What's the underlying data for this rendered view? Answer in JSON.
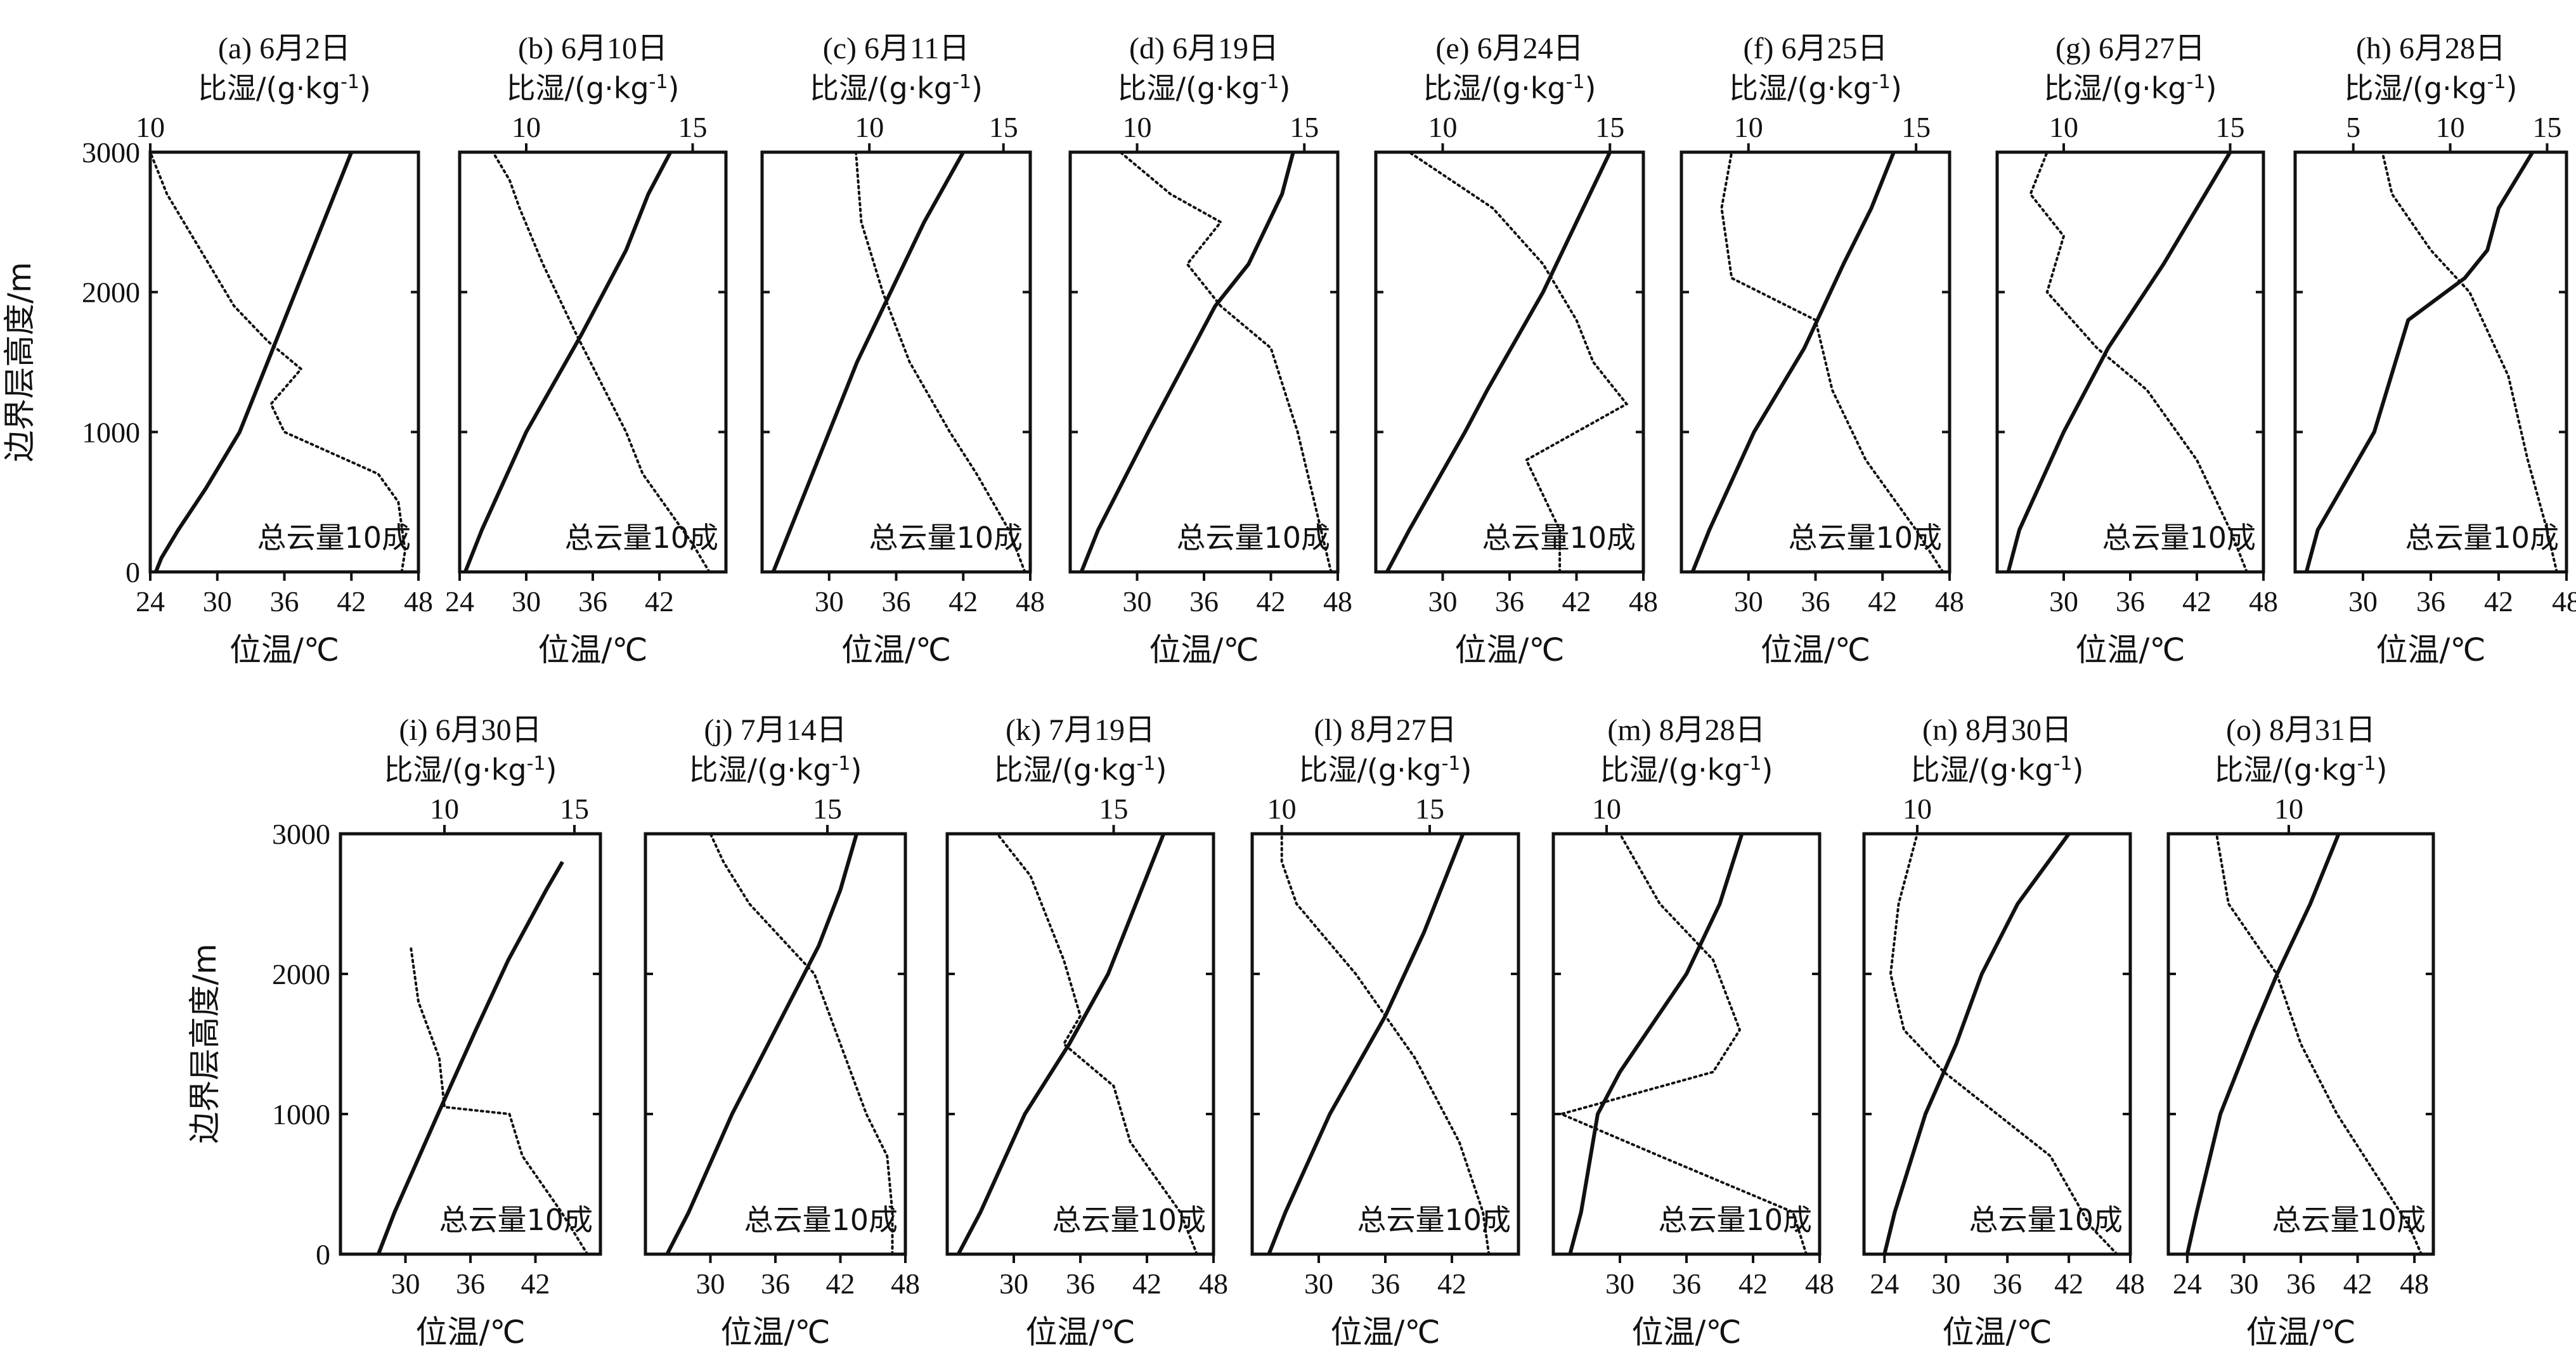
{
  "figure": {
    "ylabel": "边界层高度/m",
    "xlabel_bottom": "位温/℃",
    "xlabel_top_prefix": "比湿/(g·kg",
    "xlabel_top_sup": "-1",
    "xlabel_top_suffix": ")",
    "annotation": "总云量10成",
    "y_ticks": [
      0,
      1000,
      2000,
      3000
    ]
  },
  "chart_data": [
    {
      "type": "line",
      "title": "(a) 6月2日",
      "annotation": "总云量10成",
      "ylim": [
        0,
        3000
      ],
      "x_bottom": {
        "range": [
          24,
          48
        ],
        "ticks": [
          24,
          30,
          36,
          42,
          48
        ]
      },
      "x_top": {
        "range": [
          10,
          18
        ],
        "ticks": [
          10
        ]
      },
      "series": [
        {
          "axis": "bottom",
          "style": "solid",
          "y": [
            0,
            100,
            300,
            600,
            1000,
            1500,
            2000,
            2500,
            3000
          ],
          "x": [
            24.5,
            25,
            26.5,
            29,
            32,
            34.5,
            37,
            39.5,
            42
          ]
        },
        {
          "axis": "top",
          "style": "dotted",
          "y": [
            0,
            150,
            500,
            700,
            1000,
            1200,
            1450,
            1650,
            1900,
            2300,
            2700,
            3000
          ],
          "x": [
            17.5,
            17.6,
            17.4,
            16.8,
            14,
            13.6,
            14.5,
            13.5,
            12.5,
            11.5,
            10.5,
            10
          ]
        }
      ]
    },
    {
      "type": "line",
      "title": "(b) 6月10日",
      "annotation": "总云量10成",
      "ylim": [
        0,
        3000
      ],
      "x_bottom": {
        "range": [
          24,
          48
        ],
        "ticks": [
          24,
          30,
          36,
          42
        ]
      },
      "x_top": {
        "range": [
          8,
          16
        ],
        "ticks": [
          10,
          15
        ]
      },
      "series": [
        {
          "axis": "bottom",
          "style": "solid",
          "y": [
            0,
            300,
            1000,
            1700,
            2300,
            2700,
            3000
          ],
          "x": [
            24.5,
            26,
            30,
            35,
            39,
            41,
            43
          ]
        },
        {
          "axis": "top",
          "style": "dotted",
          "y": [
            0,
            200,
            700,
            1000,
            1700,
            2200,
            2600,
            2800,
            3000
          ],
          "x": [
            15.5,
            15,
            13.5,
            13,
            11.5,
            10.5,
            9.8,
            9.5,
            9
          ]
        }
      ]
    },
    {
      "type": "line",
      "title": "(c) 6月11日",
      "annotation": "总云量10成",
      "ylim": [
        0,
        3000
      ],
      "x_bottom": {
        "range": [
          24,
          48
        ],
        "ticks": [
          30,
          36,
          42,
          48
        ]
      },
      "x_top": {
        "range": [
          6,
          16
        ],
        "ticks": [
          10,
          15
        ]
      },
      "series": [
        {
          "axis": "bottom",
          "style": "solid",
          "y": [
            0,
            300,
            1000,
            1500,
            2000,
            2500,
            3000
          ],
          "x": [
            25,
            26.5,
            30,
            32.5,
            35.5,
            38.5,
            42
          ]
        },
        {
          "axis": "top",
          "style": "dotted",
          "y": [
            0,
            300,
            700,
            1000,
            1500,
            2000,
            2500,
            3000
          ],
          "x": [
            15.8,
            15.2,
            14,
            13,
            11.5,
            10.5,
            9.7,
            9.5
          ]
        }
      ]
    },
    {
      "type": "line",
      "title": "(d) 6月19日",
      "annotation": "总云量10成",
      "ylim": [
        0,
        3000
      ],
      "x_bottom": {
        "range": [
          24,
          48
        ],
        "ticks": [
          30,
          36,
          42,
          48
        ]
      },
      "x_top": {
        "range": [
          8,
          16
        ],
        "ticks": [
          10,
          15
        ]
      },
      "series": [
        {
          "axis": "bottom",
          "style": "solid",
          "y": [
            0,
            300,
            1000,
            1900,
            2200,
            2700,
            3000
          ],
          "x": [
            25,
            26.5,
            31,
            37,
            40,
            43,
            44
          ]
        },
        {
          "axis": "top",
          "style": "dotted",
          "y": [
            0,
            300,
            1000,
            1600,
            1900,
            2200,
            2500,
            2700,
            3000
          ],
          "x": [
            15.8,
            15.5,
            14.8,
            14,
            12.5,
            11.5,
            12.5,
            11,
            9.5
          ]
        }
      ]
    },
    {
      "type": "line",
      "title": "(e) 6月24日",
      "annotation": "总云量10成",
      "ylim": [
        0,
        3000
      ],
      "x_bottom": {
        "range": [
          24,
          48
        ],
        "ticks": [
          30,
          36,
          42,
          48
        ]
      },
      "x_top": {
        "range": [
          8,
          16
        ],
        "ticks": [
          10,
          15
        ]
      },
      "series": [
        {
          "axis": "bottom",
          "style": "solid",
          "y": [
            0,
            300,
            1000,
            1300,
            2000,
            2500,
            3000
          ],
          "x": [
            25,
            27,
            32,
            34,
            39,
            42,
            45
          ]
        },
        {
          "axis": "top",
          "style": "dotted",
          "y": [
            0,
            300,
            800,
            1200,
            1500,
            1800,
            2200,
            2600,
            3000
          ],
          "x": [
            13.5,
            13.5,
            12.5,
            15.5,
            14.5,
            14,
            13,
            11.5,
            9
          ]
        }
      ]
    },
    {
      "type": "line",
      "title": "(f) 6月25日",
      "annotation": "总云量10成",
      "ylim": [
        0,
        3000
      ],
      "x_bottom": {
        "range": [
          24,
          48
        ],
        "ticks": [
          30,
          36,
          42,
          48
        ]
      },
      "x_top": {
        "range": [
          8,
          16
        ],
        "ticks": [
          10,
          15
        ]
      },
      "series": [
        {
          "axis": "bottom",
          "style": "solid",
          "y": [
            0,
            300,
            1000,
            1600,
            2200,
            2600,
            3000
          ],
          "x": [
            25,
            26.5,
            30.5,
            35,
            38.5,
            41,
            43
          ]
        },
        {
          "axis": "top",
          "style": "dotted",
          "y": [
            0,
            300,
            800,
            1300,
            1800,
            2100,
            2600,
            3000
          ],
          "x": [
            15.8,
            15,
            13.5,
            12.5,
            12,
            9.5,
            9.2,
            9.5
          ]
        }
      ]
    },
    {
      "type": "line",
      "title": "(g) 6月27日",
      "annotation": "总云量10成",
      "ylim": [
        0,
        3000
      ],
      "x_bottom": {
        "range": [
          24,
          48
        ],
        "ticks": [
          30,
          36,
          42,
          48
        ]
      },
      "x_top": {
        "range": [
          8,
          16
        ],
        "ticks": [
          10,
          15
        ]
      },
      "series": [
        {
          "axis": "bottom",
          "style": "solid",
          "y": [
            0,
            300,
            1000,
            1600,
            2200,
            2600,
            3000
          ],
          "x": [
            25,
            26,
            30,
            34,
            39,
            42,
            45
          ]
        },
        {
          "axis": "top",
          "style": "dotted",
          "y": [
            0,
            300,
            800,
            1300,
            1600,
            2000,
            2400,
            2700,
            3000
          ],
          "x": [
            15.5,
            15,
            14,
            12.5,
            11,
            9.5,
            10,
            9,
            9.5
          ]
        }
      ]
    },
    {
      "type": "line",
      "title": "(h) 6月28日",
      "annotation": "总云量10成",
      "ylim": [
        0,
        3000
      ],
      "x_bottom": {
        "range": [
          24,
          48
        ],
        "ticks": [
          30,
          36,
          42,
          48
        ]
      },
      "x_top": {
        "range": [
          2,
          16
        ],
        "ticks": [
          5,
          10,
          15
        ]
      },
      "series": [
        {
          "axis": "bottom",
          "style": "solid",
          "y": [
            0,
            300,
            1000,
            1800,
            2100,
            2300,
            2600,
            3000
          ],
          "x": [
            25,
            26,
            31,
            34,
            39,
            41,
            42,
            45
          ]
        },
        {
          "axis": "top",
          "style": "dotted",
          "y": [
            0,
            300,
            800,
            1400,
            2000,
            2300,
            2500,
            2700,
            3000
          ],
          "x": [
            15.5,
            15,
            14,
            13,
            11,
            9,
            8,
            7,
            6.5
          ]
        }
      ]
    },
    {
      "type": "line",
      "title": "(i) 6月30日",
      "annotation": "总云量10成",
      "ylim": [
        0,
        3000
      ],
      "x_bottom": {
        "range": [
          24,
          48
        ],
        "ticks": [
          30,
          36,
          42
        ]
      },
      "x_top": {
        "range": [
          6,
          16
        ],
        "ticks": [
          10,
          15
        ]
      },
      "series": [
        {
          "axis": "bottom",
          "style": "solid",
          "y": [
            0,
            300,
            1000,
            1600,
            2100,
            2600,
            2800
          ],
          "x": [
            27.5,
            29,
            33,
            36.5,
            39.5,
            43,
            44.5
          ]
        },
        {
          "axis": "top",
          "style": "dotted",
          "y": [
            0,
            300,
            700,
            1000,
            1050,
            1400,
            1800,
            2200
          ],
          "x": [
            15.5,
            14.5,
            13,
            12.5,
            10,
            9.8,
            9,
            8.7
          ]
        }
      ]
    },
    {
      "type": "line",
      "title": "(j) 7月14日",
      "annotation": "总云量10成",
      "ylim": [
        0,
        3000
      ],
      "x_bottom": {
        "range": [
          24,
          48
        ],
        "ticks": [
          30,
          36,
          42,
          48
        ]
      },
      "x_top": {
        "range": [
          8,
          18
        ],
        "ticks": [
          15
        ]
      },
      "series": [
        {
          "axis": "bottom",
          "style": "solid",
          "y": [
            0,
            300,
            1000,
            1600,
            2200,
            2600,
            3000
          ],
          "x": [
            26,
            28,
            32,
            36,
            40,
            42,
            43.5
          ]
        },
        {
          "axis": "top",
          "style": "dotted",
          "y": [
            0,
            300,
            700,
            1000,
            1500,
            2000,
            2500,
            2800,
            3000
          ],
          "x": [
            17.5,
            17.5,
            17.3,
            16.5,
            15.5,
            14.5,
            12,
            11,
            10.5
          ]
        }
      ]
    },
    {
      "type": "line",
      "title": "(k) 7月19日",
      "annotation": "总云量10成",
      "ylim": [
        0,
        3000
      ],
      "x_bottom": {
        "range": [
          24,
          48
        ],
        "ticks": [
          30,
          36,
          42,
          48
        ]
      },
      "x_top": {
        "range": [
          10,
          18
        ],
        "ticks": [
          15
        ]
      },
      "series": [
        {
          "axis": "bottom",
          "style": "solid",
          "y": [
            0,
            300,
            1000,
            1500,
            2000,
            2600,
            3000
          ],
          "x": [
            25,
            27,
            31,
            35,
            38.5,
            41.5,
            43.5
          ]
        },
        {
          "axis": "top",
          "style": "dotted",
          "y": [
            0,
            300,
            800,
            1200,
            1500,
            1700,
            2100,
            2700,
            3000
          ],
          "x": [
            17.5,
            17,
            15.5,
            15,
            13.5,
            14,
            13.5,
            12.5,
            11.5
          ]
        }
      ]
    },
    {
      "type": "line",
      "title": "(l) 8月27日",
      "annotation": "总云量10成",
      "ylim": [
        0,
        3000
      ],
      "x_bottom": {
        "range": [
          24,
          48
        ],
        "ticks": [
          30,
          36,
          42
        ]
      },
      "x_top": {
        "range": [
          9,
          18
        ],
        "ticks": [
          10,
          15
        ]
      },
      "series": [
        {
          "axis": "bottom",
          "style": "solid",
          "y": [
            0,
            300,
            1000,
            1700,
            2300,
            2700,
            3000
          ],
          "x": [
            25.5,
            27,
            31,
            36,
            39.5,
            41.5,
            43
          ]
        },
        {
          "axis": "top",
          "style": "dotted",
          "y": [
            0,
            300,
            800,
            1400,
            2000,
            2500,
            2800,
            3000
          ],
          "x": [
            17,
            16.8,
            16,
            14.5,
            12.5,
            10.5,
            10,
            10
          ]
        }
      ]
    },
    {
      "type": "line",
      "title": "(m) 8月28日",
      "annotation": "总云量10成",
      "ylim": [
        0,
        3000
      ],
      "x_bottom": {
        "range": [
          24,
          48
        ],
        "ticks": [
          30,
          36,
          42,
          48
        ]
      },
      "x_top": {
        "range": [
          8,
          18
        ],
        "ticks": [
          10
        ]
      },
      "series": [
        {
          "axis": "bottom",
          "style": "solid",
          "y": [
            0,
            300,
            1000,
            1300,
            2000,
            2500,
            3000
          ],
          "x": [
            25.5,
            26.5,
            28,
            30,
            36,
            39,
            41
          ]
        },
        {
          "axis": "top",
          "style": "dotted",
          "y": [
            0,
            300,
            700,
            1000,
            1300,
            1600,
            2100,
            2500,
            3000
          ],
          "x": [
            17.5,
            17,
            12,
            8.3,
            14,
            15,
            14,
            12,
            10.5
          ]
        }
      ]
    },
    {
      "type": "line",
      "title": "(n) 8月30日",
      "annotation": "总云量10成",
      "ylim": [
        0,
        3000
      ],
      "x_bottom": {
        "range": [
          22,
          48
        ],
        "ticks": [
          24,
          30,
          36,
          42,
          48
        ]
      },
      "x_top": {
        "range": [
          8,
          18
        ],
        "ticks": [
          10
        ]
      },
      "series": [
        {
          "axis": "bottom",
          "style": "solid",
          "y": [
            0,
            300,
            1000,
            1500,
            2000,
            2500,
            2800,
            3000
          ],
          "x": [
            24,
            25,
            28,
            31,
            33.5,
            37,
            40,
            42
          ]
        },
        {
          "axis": "top",
          "style": "dotted",
          "y": [
            0,
            200,
            700,
            1000,
            1300,
            1600,
            2000,
            2500,
            3000
          ],
          "x": [
            17.5,
            16.5,
            15,
            13,
            11,
            9.5,
            9,
            9.3,
            10
          ]
        }
      ]
    },
    {
      "type": "line",
      "title": "(o) 8月31日",
      "annotation": "总云量10成",
      "ylim": [
        0,
        3000
      ],
      "x_bottom": {
        "range": [
          22,
          50
        ],
        "ticks": [
          24,
          30,
          36,
          42,
          48
        ]
      },
      "x_top": {
        "range": [
          5,
          16
        ],
        "ticks": [
          10
        ]
      },
      "series": [
        {
          "axis": "bottom",
          "style": "solid",
          "y": [
            0,
            300,
            1000,
            1600,
            2000,
            2500,
            3000
          ],
          "x": [
            24,
            25,
            27.5,
            31,
            33.5,
            37,
            40
          ]
        },
        {
          "axis": "top",
          "style": "dotted",
          "y": [
            0,
            200,
            600,
            1000,
            1500,
            2000,
            2500,
            3000
          ],
          "x": [
            15.5,
            15,
            13.5,
            12,
            10.5,
            9.5,
            7.5,
            7
          ]
        }
      ]
    }
  ]
}
